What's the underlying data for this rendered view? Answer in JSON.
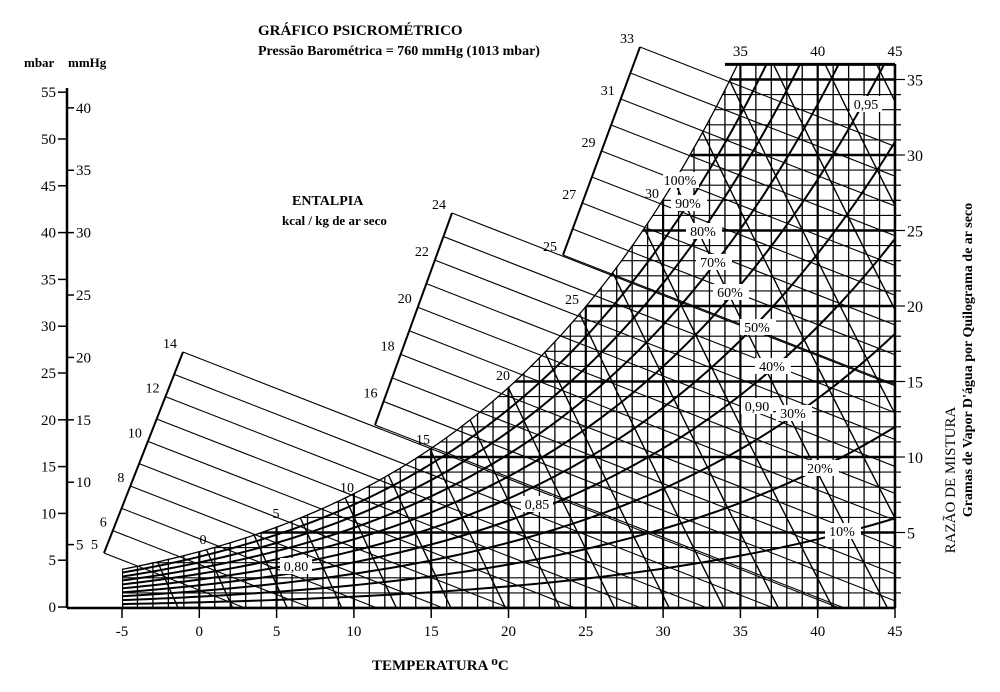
{
  "chart_data": {
    "type": "line",
    "title": "GRÁFICO PSICROMÉTRICO",
    "subtitle": "Pressão Barométrica = 760 mmHg (1013 mbar)",
    "xlabel": "TEMPERATURA ⁰C",
    "ylabel_right": "RAZÃO DE MISTURA",
    "ylabel_right_sub": "Gramas de Vapor D'água por Quilograma de ar seco",
    "ylabel_left_units": [
      "mbar",
      "mmHg"
    ],
    "enthalpy_title": "ENTALPIA",
    "enthalpy_units": "kcal / kg de ar seco",
    "xlim": [
      -5,
      45
    ],
    "ylim_mixing_ratio": [
      0,
      36
    ],
    "ylim_pressure_mbar": [
      0,
      55
    ],
    "barometric_pressure_mbar": 1013,
    "x_ticks": [
      "-5",
      "0",
      "5",
      "10",
      "15",
      "20",
      "25",
      "30",
      "35",
      "40",
      "45"
    ],
    "top_ticks": [
      "35",
      "40",
      "45"
    ],
    "right_ticks": [
      "5",
      "10",
      "15",
      "20",
      "25",
      "30",
      "35"
    ],
    "mbar_ticks": [
      "0",
      "5",
      "10",
      "15",
      "20",
      "25",
      "30",
      "35",
      "40",
      "45",
      "50",
      "55"
    ],
    "mmhg_ticks": [
      "5",
      "10",
      "15",
      "20",
      "25",
      "30",
      "35",
      "40"
    ],
    "relative_humidity_curves": [
      10,
      20,
      30,
      40,
      50,
      60,
      70,
      80,
      90,
      100
    ],
    "rh_labels": [
      "100%",
      "90%",
      "80%",
      "70%",
      "60%",
      "50%",
      "40%",
      "30%",
      "20%",
      "10%"
    ],
    "wet_bulb_labels": [
      "0",
      "5",
      "10",
      "15",
      "20",
      "25",
      "30"
    ],
    "specific_volume_labels": [
      "0,80",
      "0,85",
      "0,90",
      "0,95"
    ],
    "enthalpy_scale_groups": [
      {
        "from": 5,
        "to": 14,
        "labels": [
          "5",
          "6",
          "8",
          "10",
          "12",
          "14"
        ]
      },
      {
        "from": 15,
        "to": 24,
        "labels": [
          "16",
          "18",
          "20",
          "22",
          "24"
        ]
      },
      {
        "from": 25,
        "to": 33,
        "labels": [
          "25",
          "27",
          "29",
          "31",
          "33"
        ]
      }
    ]
  }
}
